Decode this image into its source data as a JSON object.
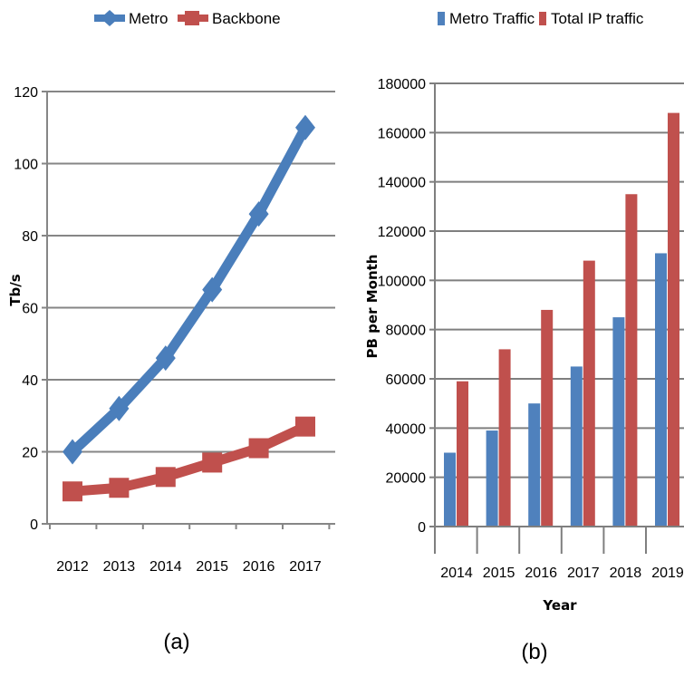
{
  "chart_data": [
    {
      "type": "line",
      "caption": "(a)",
      "xlabel": "",
      "ylabel": "Tb/s",
      "ylim": [
        0,
        120
      ],
      "yticks": [
        0,
        20,
        40,
        60,
        80,
        100,
        120
      ],
      "categories": [
        "2012",
        "2013",
        "2014",
        "2015",
        "2016",
        "2017"
      ],
      "grid": true,
      "legend": "top",
      "series": [
        {
          "name": "Metro",
          "color": "#4a7ebb",
          "marker": "diamond",
          "values": [
            20,
            32,
            46,
            65,
            86,
            110
          ]
        },
        {
          "name": "Backbone",
          "color": "#c0504d",
          "marker": "square",
          "values": [
            9,
            10,
            13,
            17,
            21,
            27
          ]
        }
      ]
    },
    {
      "type": "bar",
      "caption": "(b)",
      "xlabel": "Year",
      "ylabel": "PB per Month",
      "ylim": [
        0,
        180000
      ],
      "yticks": [
        0,
        20000,
        40000,
        60000,
        80000,
        100000,
        120000,
        140000,
        160000,
        180000
      ],
      "categories": [
        "2014",
        "2015",
        "2016",
        "2017",
        "2018",
        "2019"
      ],
      "grid": true,
      "legend": "top",
      "series": [
        {
          "name": "Metro Traffic",
          "color": "#4f81bd",
          "values": [
            30000,
            39000,
            50000,
            65000,
            85000,
            111000
          ]
        },
        {
          "name": "Total IP traffic",
          "color": "#c0504d",
          "values": [
            59000,
            72000,
            88000,
            108000,
            135000,
            168000
          ]
        }
      ]
    }
  ]
}
